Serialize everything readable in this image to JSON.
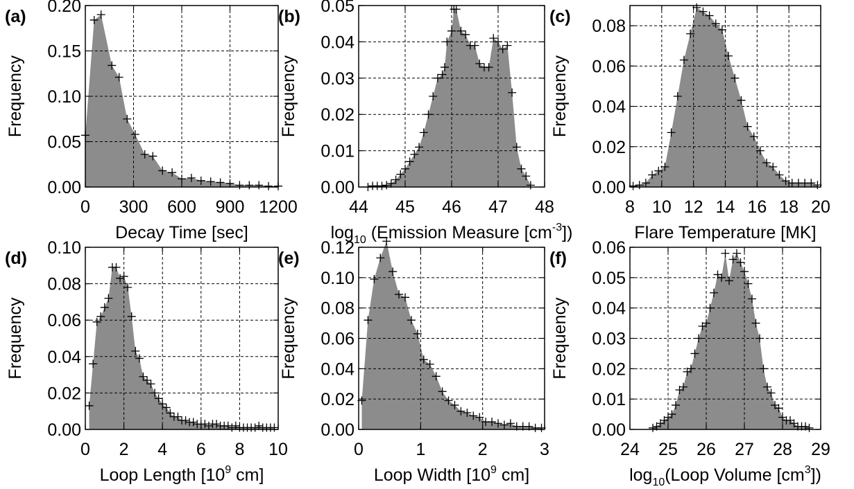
{
  "chart_data": [
    {
      "type": "area",
      "panel_label": "(a)",
      "xlabel": "Decay Time [sec]",
      "ylabel": "Frequency",
      "xlim": [
        0,
        1200
      ],
      "ylim": [
        0,
        0.2
      ],
      "xticks": [
        0,
        300,
        600,
        900,
        1200
      ],
      "xtick_labels": [
        "0",
        "300",
        "600",
        "900",
        "1200"
      ],
      "yticks": [
        0,
        0.05,
        0.1,
        0.15,
        0.2
      ],
      "ytick_labels": [
        "0.00",
        "0.05",
        "0.10",
        "0.15",
        "0.20"
      ],
      "x": [
        0,
        55,
        98,
        165,
        210,
        260,
        310,
        370,
        420,
        480,
        540,
        600,
        660,
        720,
        780,
        840,
        900,
        960,
        1020,
        1080,
        1140,
        1200
      ],
      "y": [
        0.057,
        0.184,
        0.19,
        0.134,
        0.121,
        0.075,
        0.058,
        0.036,
        0.034,
        0.018,
        0.016,
        0.009,
        0.01,
        0.007,
        0.006,
        0.005,
        0.004,
        0.002,
        0.002,
        0.002,
        0.001,
        0.001
      ]
    },
    {
      "type": "area",
      "panel_label": "(b)",
      "xlabel": "log",
      "xlabel_sub": "10",
      "xlabel_rest": " (Emission Measure [cm",
      "xlabel_sup": "-3",
      "xlabel_end": "])",
      "ylabel": "Frequency",
      "xlim": [
        44,
        48
      ],
      "ylim": [
        0,
        0.05
      ],
      "xticks": [
        44,
        45,
        46,
        47,
        48
      ],
      "xtick_labels": [
        "44",
        "45",
        "46",
        "47",
        "48"
      ],
      "yticks": [
        0,
        0.01,
        0.02,
        0.03,
        0.04,
        0.05
      ],
      "ytick_labels": [
        "0.00",
        "0.01",
        "0.02",
        "0.03",
        "0.04",
        "0.05"
      ],
      "x": [
        44.2,
        44.3,
        44.4,
        44.5,
        44.6,
        44.7,
        44.8,
        44.9,
        45.0,
        45.1,
        45.2,
        45.3,
        45.4,
        45.5,
        45.6,
        45.7,
        45.8,
        45.85,
        45.9,
        46.0,
        46.05,
        46.1,
        46.2,
        46.3,
        46.4,
        46.5,
        46.6,
        46.7,
        46.8,
        46.9,
        47.0,
        47.1,
        47.2,
        47.3,
        47.4,
        47.5,
        47.6,
        47.7
      ],
      "y": [
        0.0,
        0.0003,
        0.0003,
        0.0003,
        0.0005,
        0.001,
        0.002,
        0.0035,
        0.005,
        0.007,
        0.009,
        0.011,
        0.015,
        0.02,
        0.025,
        0.03,
        0.031,
        0.033,
        0.04,
        0.043,
        0.049,
        0.049,
        0.043,
        0.042,
        0.039,
        0.039,
        0.034,
        0.033,
        0.033,
        0.041,
        0.04,
        0.038,
        0.039,
        0.026,
        0.011,
        0.005,
        0.003,
        0.0005
      ]
    },
    {
      "type": "area",
      "panel_label": "(c)",
      "xlabel": "Flare Temperature [MK]",
      "ylabel": "Frequency",
      "xlim": [
        8,
        20
      ],
      "ylim": [
        0,
        0.09
      ],
      "xticks": [
        8,
        10,
        12,
        14,
        16,
        18,
        20
      ],
      "xtick_labels": [
        "8",
        "10",
        "12",
        "14",
        "16",
        "18",
        "20"
      ],
      "yticks": [
        0,
        0.02,
        0.04,
        0.06,
        0.08
      ],
      "ytick_labels": [
        "0.00",
        "0.02",
        "0.04",
        "0.06",
        "0.08"
      ],
      "x": [
        8.2,
        8.6,
        9.0,
        9.4,
        9.8,
        10.2,
        10.6,
        11.0,
        11.4,
        11.8,
        12.2,
        12.6,
        13.0,
        13.4,
        13.8,
        14.2,
        14.6,
        15.0,
        15.4,
        15.8,
        16.2,
        16.6,
        17.0,
        17.4,
        17.8,
        18.2,
        18.6,
        19.0,
        19.4,
        19.8
      ],
      "y": [
        0.0005,
        0.001,
        0.002,
        0.006,
        0.008,
        0.01,
        0.027,
        0.045,
        0.063,
        0.076,
        0.089,
        0.087,
        0.085,
        0.081,
        0.078,
        0.065,
        0.054,
        0.043,
        0.03,
        0.025,
        0.018,
        0.012,
        0.01,
        0.006,
        0.003,
        0.002,
        0.002,
        0.002,
        0.002,
        0.001
      ]
    },
    {
      "type": "area",
      "panel_label": "(d)",
      "xlabel": "Loop Length [10",
      "xlabel_sup": "9",
      "xlabel_end": " cm]",
      "ylabel": "Frequency",
      "xlim": [
        0,
        10
      ],
      "ylim": [
        0,
        0.1
      ],
      "xticks": [
        0,
        2,
        4,
        6,
        8,
        10
      ],
      "xtick_labels": [
        "0",
        "2",
        "4",
        "6",
        "8",
        "10"
      ],
      "yticks": [
        0,
        0.02,
        0.04,
        0.06,
        0.08,
        0.1
      ],
      "ytick_labels": [
        "0.00",
        "0.02",
        "0.04",
        "0.06",
        "0.08",
        "0.10"
      ],
      "x": [
        0.2,
        0.4,
        0.6,
        0.8,
        1.0,
        1.2,
        1.4,
        1.6,
        1.8,
        2.0,
        2.2,
        2.4,
        2.6,
        2.8,
        3.0,
        3.2,
        3.4,
        3.6,
        3.8,
        4.0,
        4.2,
        4.4,
        4.6,
        4.8,
        5.0,
        5.2,
        5.4,
        5.6,
        5.8,
        6.0,
        6.2,
        6.4,
        6.6,
        6.8,
        7.0,
        7.2,
        7.4,
        7.6,
        7.8,
        8.0,
        8.2,
        8.4,
        8.6,
        8.8,
        9.0,
        9.2,
        9.4,
        9.6,
        9.8
      ],
      "y": [
        0.013,
        0.036,
        0.059,
        0.062,
        0.067,
        0.072,
        0.089,
        0.089,
        0.083,
        0.084,
        0.078,
        0.062,
        0.043,
        0.039,
        0.029,
        0.027,
        0.025,
        0.02,
        0.017,
        0.014,
        0.012,
        0.009,
        0.007,
        0.007,
        0.005,
        0.005,
        0.004,
        0.004,
        0.003,
        0.003,
        0.003,
        0.002,
        0.003,
        0.003,
        0.002,
        0.002,
        0.002,
        0.001,
        0.002,
        0.001,
        0.001,
        0.001,
        0.001,
        0.001,
        0.002,
        0.001,
        0.001,
        0.001,
        0.001
      ]
    },
    {
      "type": "area",
      "panel_label": "(e)",
      "xlabel": "Loop Width [10",
      "xlabel_sup": "9",
      "xlabel_end": " cm]",
      "ylabel": "Frequency",
      "xlim": [
        0,
        3
      ],
      "ylim": [
        0,
        0.12
      ],
      "xticks": [
        0,
        1,
        2,
        3
      ],
      "xtick_labels": [
        "0",
        "1",
        "2",
        "3"
      ],
      "yticks": [
        0,
        0.02,
        0.04,
        0.06,
        0.08,
        0.1,
        0.12
      ],
      "ytick_labels": [
        "0.00",
        "0.02",
        "0.04",
        "0.06",
        "0.08",
        "0.10",
        "0.12"
      ],
      "x": [
        0.05,
        0.15,
        0.25,
        0.35,
        0.45,
        0.55,
        0.65,
        0.75,
        0.85,
        0.95,
        1.05,
        1.15,
        1.25,
        1.35,
        1.45,
        1.55,
        1.65,
        1.75,
        1.85,
        1.95,
        2.05,
        2.15,
        2.25,
        2.35,
        2.45,
        2.55,
        2.65,
        2.75,
        2.85,
        2.95
      ],
      "y": [
        0.019,
        0.072,
        0.099,
        0.113,
        0.124,
        0.104,
        0.089,
        0.087,
        0.072,
        0.063,
        0.046,
        0.043,
        0.035,
        0.025,
        0.019,
        0.016,
        0.012,
        0.011,
        0.009,
        0.008,
        0.005,
        0.005,
        0.004,
        0.003,
        0.004,
        0.002,
        0.002,
        0.002,
        0.001,
        0.001
      ]
    },
    {
      "type": "area",
      "panel_label": "(f)",
      "xlabel": "log",
      "xlabel_sub": "10",
      "xlabel_rest": "(Loop Volume [cm",
      "xlabel_sup": "3",
      "xlabel_end": "])",
      "ylabel": "Frequency",
      "xlim": [
        24,
        29
      ],
      "ylim": [
        0,
        0.06
      ],
      "xticks": [
        24,
        25,
        26,
        27,
        28,
        29
      ],
      "xtick_labels": [
        "24",
        "25",
        "26",
        "27",
        "28",
        "29"
      ],
      "yticks": [
        0,
        0.01,
        0.02,
        0.03,
        0.04,
        0.05,
        0.06
      ],
      "ytick_labels": [
        "0.00",
        "0.01",
        "0.02",
        "0.03",
        "0.04",
        "0.05",
        "0.06"
      ],
      "x": [
        24.6,
        24.7,
        24.8,
        24.9,
        25.0,
        25.1,
        25.2,
        25.3,
        25.4,
        25.5,
        25.6,
        25.7,
        25.8,
        25.9,
        26.0,
        26.1,
        26.2,
        26.3,
        26.4,
        26.5,
        26.6,
        26.7,
        26.8,
        26.9,
        27.0,
        27.1,
        27.2,
        27.3,
        27.4,
        27.5,
        27.6,
        27.7,
        27.8,
        27.9,
        28.0,
        28.1,
        28.2,
        28.3,
        28.4,
        28.5,
        28.6,
        28.7
      ],
      "y": [
        0.0005,
        0.001,
        0.002,
        0.003,
        0.004,
        0.005,
        0.008,
        0.013,
        0.014,
        0.019,
        0.02,
        0.025,
        0.03,
        0.034,
        0.035,
        0.04,
        0.045,
        0.051,
        0.05,
        0.058,
        0.049,
        0.056,
        0.058,
        0.055,
        0.052,
        0.048,
        0.043,
        0.035,
        0.03,
        0.02,
        0.014,
        0.012,
        0.008,
        0.007,
        0.004,
        0.003,
        0.003,
        0.002,
        0.001,
        0.001,
        0.001,
        0.0005
      ]
    }
  ]
}
